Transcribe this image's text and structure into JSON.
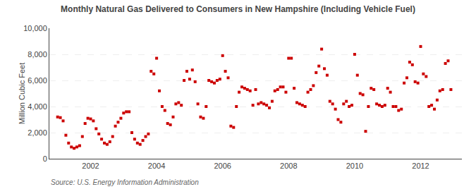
{
  "chart_data": {
    "type": "scatter",
    "title": "Monthly Natural Gas Delivered to Consumers in New Hampshire (Including Vehicle Fuel)",
    "ylabel": "Million Cubic Feet",
    "annotations": [
      "Source: U.S. Energy Information Administration"
    ],
    "color": "#cc0000",
    "marker": "square",
    "grid": true,
    "xlim": [
      2000.75,
      2013.25
    ],
    "xticks": [
      2002,
      2004,
      2006,
      2008,
      2010,
      2012
    ],
    "ylim": [
      0,
      10000
    ],
    "yticks": [
      0,
      {
        "value": 2000,
        "label": "2,000"
      },
      {
        "value": 4000,
        "label": "4,000"
      },
      {
        "value": 6000,
        "label": "6,000"
      },
      {
        "value": 8000,
        "label": "8,000"
      },
      {
        "value": 10000,
        "label": "10,000"
      }
    ],
    "x": [
      2001.0,
      2001.083,
      2001.167,
      2001.25,
      2001.333,
      2001.417,
      2001.5,
      2001.583,
      2001.667,
      2001.75,
      2001.833,
      2001.917,
      2002.0,
      2002.083,
      2002.167,
      2002.25,
      2002.333,
      2002.417,
      2002.5,
      2002.583,
      2002.667,
      2002.75,
      2002.833,
      2002.917,
      2003.0,
      2003.083,
      2003.167,
      2003.25,
      2003.333,
      2003.417,
      2003.5,
      2003.583,
      2003.667,
      2003.75,
      2003.833,
      2003.917,
      2004.0,
      2004.083,
      2004.167,
      2004.25,
      2004.333,
      2004.417,
      2004.5,
      2004.583,
      2004.667,
      2004.75,
      2004.833,
      2004.917,
      2005.0,
      2005.083,
      2005.167,
      2005.25,
      2005.333,
      2005.417,
      2005.5,
      2005.583,
      2005.667,
      2005.75,
      2005.833,
      2005.917,
      2006.0,
      2006.083,
      2006.167,
      2006.25,
      2006.333,
      2006.417,
      2006.5,
      2006.583,
      2006.667,
      2006.75,
      2006.833,
      2006.917,
      2007.0,
      2007.083,
      2007.167,
      2007.25,
      2007.333,
      2007.417,
      2007.5,
      2007.583,
      2007.667,
      2007.75,
      2007.833,
      2007.917,
      2008.0,
      2008.083,
      2008.167,
      2008.25,
      2008.333,
      2008.417,
      2008.5,
      2008.583,
      2008.667,
      2008.75,
      2008.833,
      2008.917,
      2009.0,
      2009.083,
      2009.167,
      2009.25,
      2009.333,
      2009.417,
      2009.5,
      2009.583,
      2009.667,
      2009.75,
      2009.833,
      2009.917,
      2010.0,
      2010.083,
      2010.167,
      2010.25,
      2010.333,
      2010.417,
      2010.5,
      2010.583,
      2010.667,
      2010.75,
      2010.833,
      2010.917,
      2011.0,
      2011.083,
      2011.167,
      2011.25,
      2011.333,
      2011.417,
      2011.5,
      2011.583,
      2011.667,
      2011.75,
      2011.833,
      2011.917,
      2012.0,
      2012.083,
      2012.167,
      2012.25,
      2012.333,
      2012.417,
      2012.5,
      2012.583,
      2012.667,
      2012.75,
      2012.833,
      2012.917
    ],
    "values": [
      3200,
      3150,
      2900,
      1800,
      1200,
      900,
      800,
      900,
      1000,
      1700,
      2700,
      3100,
      3050,
      2900,
      2300,
      1900,
      1500,
      1200,
      1100,
      1300,
      1700,
      2500,
      2800,
      3100,
      3500,
      3600,
      3600,
      2000,
      1500,
      1200,
      1100,
      1400,
      1700,
      1900,
      6700,
      6500,
      7700,
      5200,
      4000,
      3700,
      2700,
      2600,
      3200,
      4200,
      4300,
      4100,
      6000,
      6700,
      6100,
      6800,
      5900,
      4200,
      3200,
      3100,
      4000,
      6000,
      5900,
      5800,
      6000,
      6100,
      7900,
      6700,
      6200,
      2500,
      2400,
      4000,
      5100,
      5500,
      5400,
      5300,
      5200,
      4100,
      5300,
      4200,
      4300,
      4200,
      4100,
      3900,
      4400,
      5200,
      5300,
      5500,
      5500,
      5100,
      7700,
      7700,
      5400,
      4300,
      4200,
      4100,
      4000,
      5100,
      5300,
      5600,
      6600,
      7100,
      8400,
      6900,
      6400,
      4400,
      4200,
      3800,
      3000,
      2800,
      4200,
      4400,
      4000,
      4100,
      8000,
      6400,
      5000,
      4900,
      2100,
      4000,
      5400,
      5300,
      4200,
      4100,
      4000,
      4100,
      5400,
      5100,
      4000,
      4000,
      3700,
      3800,
      5800,
      6200,
      7400,
      7200,
      5900,
      5800,
      8600,
      6500,
      6300,
      4000,
      4100,
      3800,
      4500,
      5200,
      5300,
      7300,
      7500,
      5300
    ]
  }
}
